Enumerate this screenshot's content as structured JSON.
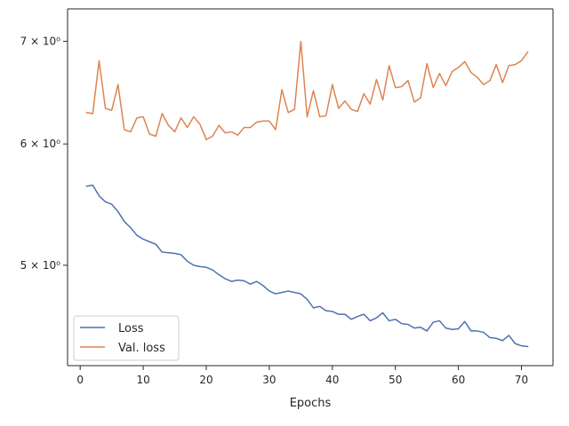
{
  "chart_data": {
    "type": "line",
    "xlabel": "Epochs",
    "ylabel": "",
    "y_scale": "log",
    "xlim": [
      -2,
      75
    ],
    "ylim": [
      4.3,
      7.35
    ],
    "x_ticks": [
      0,
      10,
      20,
      30,
      40,
      50,
      60,
      70
    ],
    "x_tick_labels": [
      "0",
      "10",
      "20",
      "30",
      "40",
      "50",
      "60",
      "70"
    ],
    "y_ticks": [
      5,
      6,
      7
    ],
    "y_tick_labels": [
      "5 × 10⁰",
      "6 × 10⁰",
      "7 × 10⁰"
    ],
    "grid": false,
    "legend_position": "lower-left",
    "x": [
      1,
      2,
      3,
      4,
      5,
      6,
      7,
      8,
      9,
      10,
      11,
      12,
      13,
      14,
      15,
      16,
      17,
      18,
      19,
      20,
      21,
      22,
      23,
      24,
      25,
      26,
      27,
      28,
      29,
      30,
      31,
      32,
      33,
      34,
      35,
      36,
      37,
      38,
      39,
      40,
      41,
      42,
      43,
      44,
      45,
      46,
      47,
      48,
      49,
      50,
      51,
      52,
      53,
      54,
      55,
      56,
      57,
      58,
      59,
      60,
      61,
      62,
      63,
      64,
      65,
      66,
      67,
      68,
      69,
      70,
      71
    ],
    "series": [
      {
        "name": "Loss",
        "color": "#4c72b0",
        "values": [
          5.63,
          5.64,
          5.55,
          5.5,
          5.48,
          5.42,
          5.34,
          5.29,
          5.23,
          5.2,
          5.18,
          5.16,
          5.1,
          5.095,
          5.09,
          5.08,
          5.03,
          5.0,
          4.99,
          4.985,
          4.965,
          4.93,
          4.9,
          4.88,
          4.89,
          4.885,
          4.86,
          4.88,
          4.85,
          4.81,
          4.79,
          4.8,
          4.81,
          4.8,
          4.79,
          4.75,
          4.69,
          4.7,
          4.67,
          4.665,
          4.645,
          4.645,
          4.61,
          4.63,
          4.645,
          4.6,
          4.62,
          4.655,
          4.6,
          4.61,
          4.58,
          4.575,
          4.55,
          4.555,
          4.53,
          4.59,
          4.6,
          4.55,
          4.54,
          4.545,
          4.595,
          4.53,
          4.53,
          4.52,
          4.485,
          4.48,
          4.465,
          4.5,
          4.445,
          4.43,
          4.425
        ]
      },
      {
        "name": "Val. loss",
        "color": "#dd8452",
        "values": [
          6.29,
          6.28,
          6.8,
          6.33,
          6.31,
          6.56,
          6.13,
          6.11,
          6.24,
          6.25,
          6.09,
          6.07,
          6.28,
          6.17,
          6.11,
          6.24,
          6.15,
          6.25,
          6.18,
          6.04,
          6.07,
          6.17,
          6.1,
          6.11,
          6.08,
          6.15,
          6.15,
          6.2,
          6.21,
          6.21,
          6.13,
          6.51,
          6.29,
          6.32,
          7.0,
          6.25,
          6.5,
          6.25,
          6.26,
          6.56,
          6.33,
          6.4,
          6.32,
          6.3,
          6.47,
          6.37,
          6.61,
          6.41,
          6.75,
          6.53,
          6.54,
          6.6,
          6.39,
          6.43,
          6.77,
          6.53,
          6.67,
          6.55,
          6.69,
          6.73,
          6.79,
          6.68,
          6.63,
          6.56,
          6.6,
          6.76,
          6.58,
          6.75,
          6.76,
          6.8,
          6.89
        ]
      }
    ]
  }
}
